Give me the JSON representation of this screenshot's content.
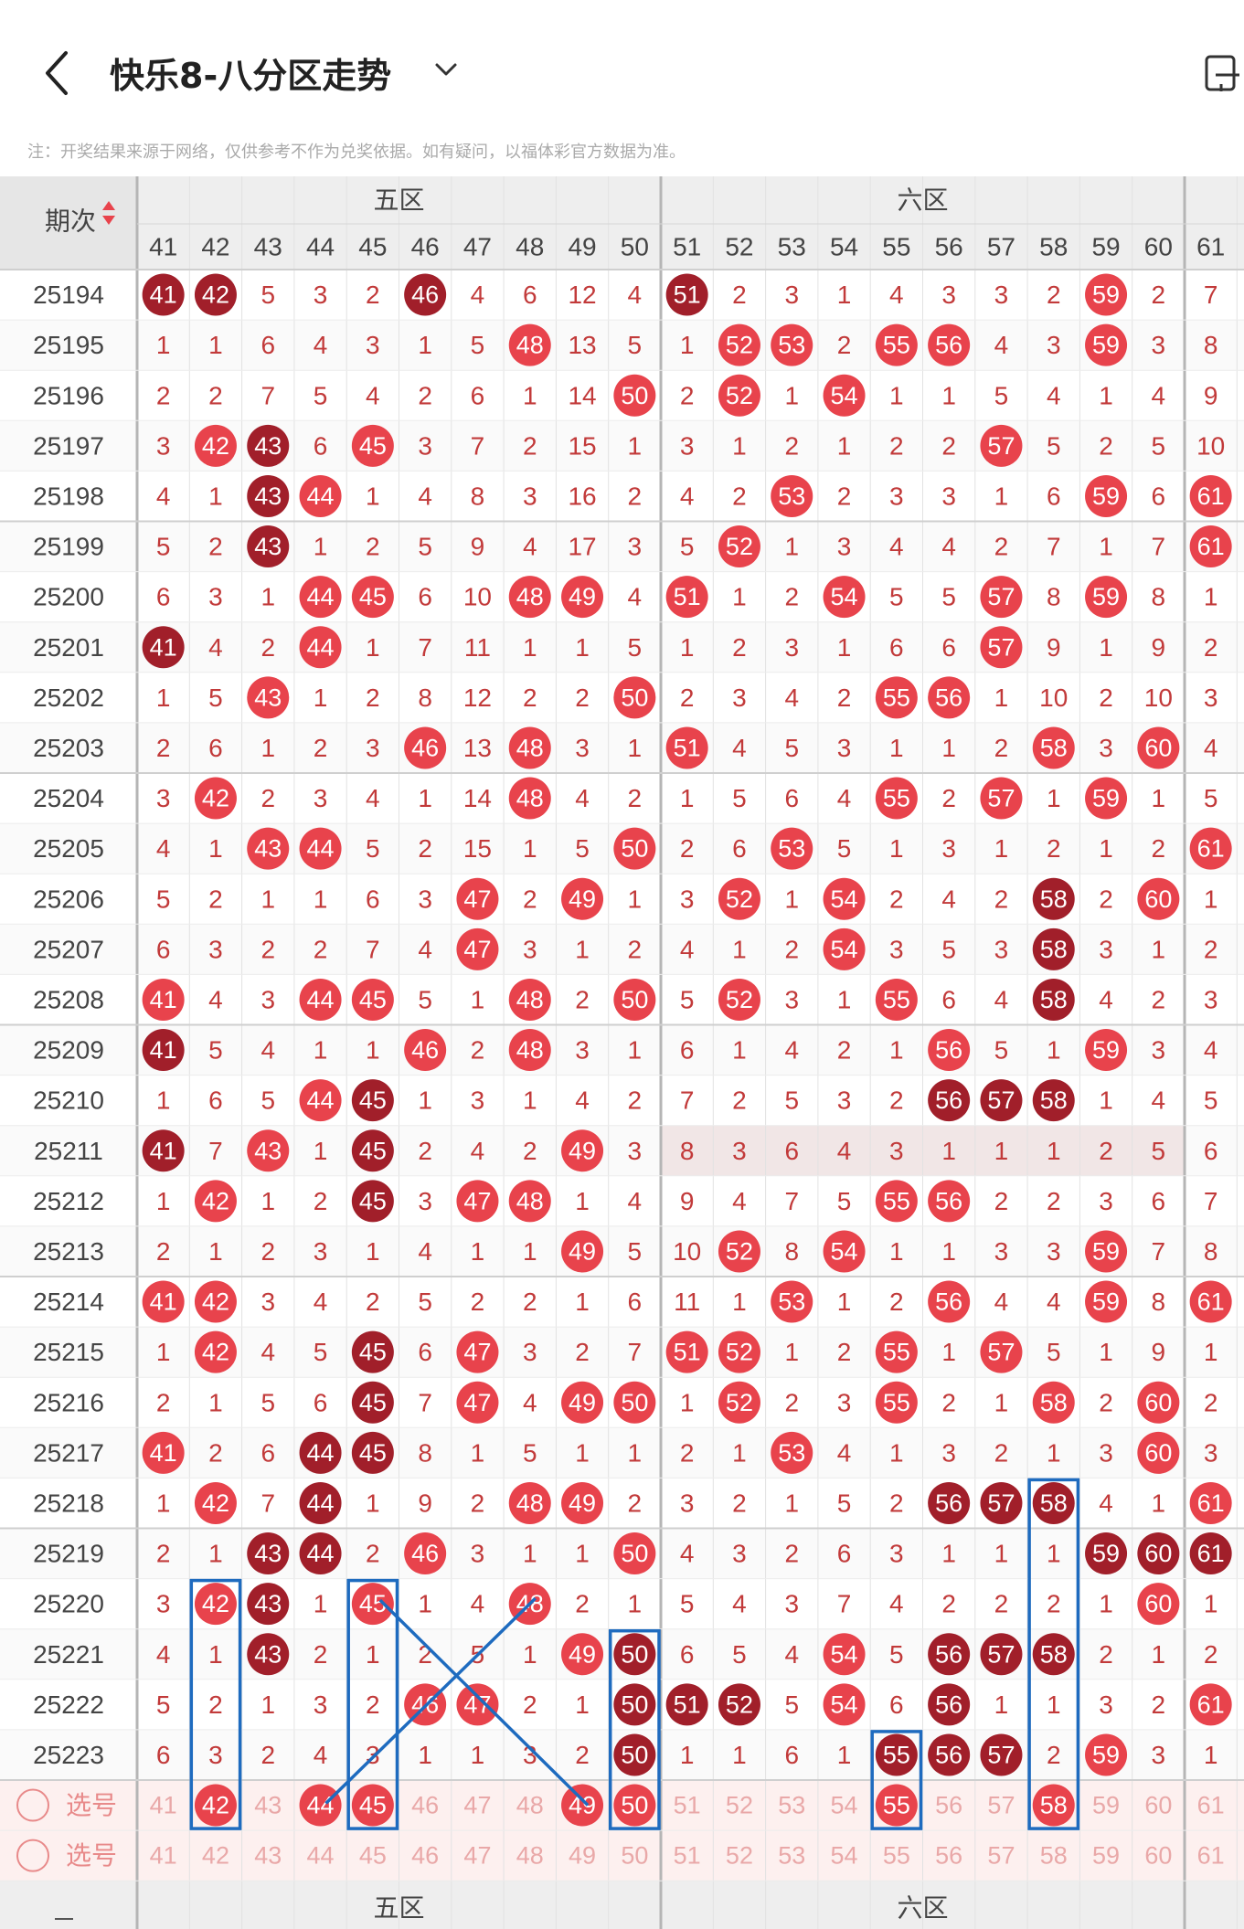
{
  "header": {
    "title": "快乐8-八分区走势",
    "notice": "注：开奖结果来源于网络，仅供参考不作为兑奖依据。如有疑问，以福体彩官方数据为准。",
    "back_icon": "chevron-left-icon",
    "dropdown_icon": "chevron-down-icon",
    "device_icon": "device-switch-icon"
  },
  "table": {
    "period_header": "期次",
    "zones": [
      "五区",
      "六区"
    ],
    "columns": [
      "41",
      "42",
      "43",
      "44",
      "45",
      "46",
      "47",
      "48",
      "49",
      "50",
      "51",
      "52",
      "53",
      "54",
      "55",
      "56",
      "57",
      "58",
      "59",
      "60",
      "61"
    ],
    "rows": [
      {
        "period": "25194",
        "cells": [
          41,
          42,
          5,
          3,
          2,
          46,
          4,
          6,
          12,
          4,
          51,
          2,
          3,
          1,
          4,
          3,
          3,
          2,
          59,
          2,
          7
        ]
      },
      {
        "period": "25195",
        "cells": [
          1,
          1,
          6,
          4,
          3,
          1,
          5,
          48,
          13,
          5,
          1,
          52,
          53,
          2,
          55,
          56,
          4,
          3,
          59,
          3,
          8
        ]
      },
      {
        "period": "25196",
        "cells": [
          2,
          2,
          7,
          5,
          4,
          2,
          6,
          1,
          14,
          50,
          2,
          52,
          1,
          54,
          1,
          1,
          5,
          4,
          1,
          4,
          9
        ]
      },
      {
        "period": "25197",
        "cells": [
          3,
          42,
          43,
          6,
          45,
          3,
          7,
          2,
          15,
          1,
          3,
          1,
          2,
          1,
          2,
          2,
          57,
          5,
          2,
          5,
          10
        ]
      },
      {
        "period": "25198",
        "cells": [
          4,
          1,
          43,
          44,
          1,
          4,
          8,
          3,
          16,
          2,
          4,
          2,
          53,
          2,
          3,
          3,
          1,
          6,
          59,
          6,
          61
        ]
      },
      {
        "period": "25199",
        "cells": [
          5,
          2,
          43,
          1,
          2,
          5,
          9,
          4,
          17,
          3,
          5,
          52,
          1,
          3,
          4,
          4,
          2,
          7,
          1,
          7,
          61
        ]
      },
      {
        "period": "25200",
        "cells": [
          6,
          3,
          1,
          44,
          45,
          6,
          10,
          48,
          49,
          4,
          51,
          1,
          2,
          54,
          5,
          5,
          57,
          8,
          59,
          8,
          1
        ]
      },
      {
        "period": "25201",
        "cells": [
          41,
          4,
          2,
          44,
          1,
          7,
          11,
          1,
          1,
          5,
          1,
          2,
          3,
          1,
          6,
          6,
          57,
          9,
          1,
          9,
          2
        ]
      },
      {
        "period": "25202",
        "cells": [
          1,
          5,
          43,
          1,
          2,
          8,
          12,
          2,
          2,
          50,
          2,
          3,
          4,
          2,
          55,
          56,
          1,
          10,
          2,
          10,
          3
        ]
      },
      {
        "period": "25203",
        "cells": [
          2,
          6,
          1,
          2,
          3,
          46,
          13,
          48,
          3,
          1,
          51,
          4,
          5,
          3,
          1,
          1,
          2,
          58,
          3,
          60,
          4
        ]
      },
      {
        "period": "25204",
        "cells": [
          3,
          42,
          2,
          3,
          4,
          1,
          14,
          48,
          4,
          2,
          1,
          5,
          6,
          4,
          55,
          2,
          57,
          1,
          59,
          1,
          5
        ]
      },
      {
        "period": "25205",
        "cells": [
          4,
          1,
          43,
          44,
          5,
          2,
          15,
          1,
          5,
          50,
          2,
          6,
          53,
          5,
          1,
          3,
          1,
          2,
          1,
          2,
          61
        ]
      },
      {
        "period": "25206",
        "cells": [
          5,
          2,
          1,
          1,
          6,
          3,
          47,
          2,
          49,
          1,
          3,
          52,
          1,
          54,
          2,
          4,
          2,
          58,
          2,
          60,
          1
        ]
      },
      {
        "period": "25207",
        "cells": [
          6,
          3,
          2,
          2,
          7,
          4,
          47,
          3,
          1,
          2,
          4,
          1,
          2,
          54,
          3,
          5,
          3,
          58,
          3,
          1,
          2
        ]
      },
      {
        "period": "25208",
        "cells": [
          41,
          4,
          3,
          44,
          45,
          5,
          1,
          48,
          2,
          50,
          5,
          52,
          3,
          1,
          55,
          6,
          4,
          58,
          4,
          2,
          3
        ]
      },
      {
        "period": "25209",
        "cells": [
          41,
          5,
          4,
          1,
          1,
          46,
          2,
          48,
          3,
          1,
          6,
          1,
          4,
          2,
          1,
          56,
          5,
          1,
          59,
          3,
          4
        ]
      },
      {
        "period": "25210",
        "cells": [
          1,
          6,
          5,
          44,
          45,
          1,
          3,
          1,
          4,
          2,
          7,
          2,
          5,
          3,
          2,
          56,
          57,
          58,
          1,
          4,
          5
        ]
      },
      {
        "period": "25211",
        "cells": [
          41,
          7,
          43,
          1,
          45,
          2,
          4,
          2,
          49,
          3,
          8,
          3,
          6,
          4,
          3,
          1,
          1,
          1,
          2,
          5,
          6
        ]
      },
      {
        "period": "25212",
        "cells": [
          1,
          42,
          1,
          2,
          45,
          3,
          47,
          48,
          1,
          4,
          9,
          4,
          7,
          5,
          55,
          56,
          2,
          2,
          3,
          6,
          7
        ]
      },
      {
        "period": "25213",
        "cells": [
          2,
          1,
          2,
          3,
          1,
          4,
          1,
          1,
          49,
          5,
          10,
          52,
          8,
          54,
          1,
          1,
          3,
          3,
          59,
          7,
          8
        ]
      },
      {
        "period": "25214",
        "cells": [
          41,
          42,
          3,
          4,
          2,
          5,
          2,
          2,
          1,
          6,
          11,
          1,
          53,
          1,
          2,
          56,
          4,
          4,
          59,
          8,
          61
        ]
      },
      {
        "period": "25215",
        "cells": [
          1,
          42,
          4,
          5,
          45,
          6,
          47,
          3,
          2,
          7,
          51,
          52,
          1,
          2,
          55,
          1,
          57,
          5,
          1,
          9,
          1
        ]
      },
      {
        "period": "25216",
        "cells": [
          2,
          1,
          5,
          6,
          45,
          7,
          47,
          4,
          49,
          50,
          1,
          52,
          2,
          3,
          55,
          2,
          1,
          58,
          2,
          60,
          2
        ]
      },
      {
        "period": "25217",
        "cells": [
          41,
          2,
          6,
          44,
          45,
          8,
          1,
          5,
          1,
          1,
          2,
          1,
          53,
          4,
          1,
          3,
          2,
          1,
          3,
          60,
          3
        ]
      },
      {
        "period": "25218",
        "cells": [
          1,
          42,
          7,
          44,
          1,
          9,
          2,
          48,
          49,
          2,
          3,
          2,
          1,
          5,
          2,
          56,
          57,
          58,
          4,
          1,
          61
        ]
      },
      {
        "period": "25219",
        "cells": [
          2,
          1,
          43,
          44,
          2,
          46,
          3,
          1,
          1,
          50,
          4,
          3,
          2,
          6,
          3,
          1,
          1,
          1,
          59,
          60,
          61
        ]
      },
      {
        "period": "25220",
        "cells": [
          3,
          42,
          43,
          1,
          45,
          1,
          4,
          48,
          2,
          1,
          5,
          4,
          3,
          7,
          4,
          2,
          2,
          2,
          1,
          60,
          1
        ]
      },
      {
        "period": "25221",
        "cells": [
          4,
          1,
          43,
          2,
          1,
          2,
          5,
          1,
          49,
          50,
          6,
          5,
          4,
          54,
          5,
          56,
          57,
          58,
          2,
          1,
          2
        ]
      },
      {
        "period": "25222",
        "cells": [
          5,
          2,
          1,
          3,
          2,
          46,
          47,
          2,
          1,
          50,
          51,
          52,
          5,
          54,
          6,
          56,
          1,
          1,
          3,
          2,
          61
        ]
      },
      {
        "period": "25223",
        "cells": [
          6,
          3,
          2,
          4,
          3,
          1,
          1,
          3,
          2,
          50,
          1,
          1,
          6,
          1,
          55,
          56,
          57,
          2,
          59,
          3,
          1
        ]
      }
    ],
    "dark_balls": [
      [
        0,
        0
      ],
      [
        0,
        1
      ],
      [
        0,
        5
      ],
      [
        0,
        10
      ],
      [
        3,
        2
      ],
      [
        4,
        2
      ],
      [
        5,
        2
      ],
      [
        7,
        0
      ],
      [
        12,
        17
      ],
      [
        13,
        17
      ],
      [
        14,
        17
      ],
      [
        15,
        0
      ],
      [
        16,
        4
      ],
      [
        16,
        15
      ],
      [
        16,
        16
      ],
      [
        16,
        17
      ],
      [
        17,
        0
      ],
      [
        17,
        4
      ],
      [
        18,
        4
      ],
      [
        21,
        4
      ],
      [
        22,
        4
      ],
      [
        23,
        3
      ],
      [
        23,
        4
      ],
      [
        24,
        3
      ],
      [
        24,
        15
      ],
      [
        24,
        16
      ],
      [
        24,
        17
      ],
      [
        25,
        2
      ],
      [
        25,
        3
      ],
      [
        25,
        18
      ],
      [
        25,
        19
      ],
      [
        25,
        20
      ],
      [
        26,
        2
      ],
      [
        27,
        2
      ],
      [
        27,
        9
      ],
      [
        27,
        15
      ],
      [
        27,
        16
      ],
      [
        27,
        17
      ],
      [
        28,
        9
      ],
      [
        28,
        10
      ],
      [
        28,
        11
      ],
      [
        28,
        15
      ],
      [
        29,
        9
      ],
      [
        29,
        14
      ],
      [
        29,
        15
      ],
      [
        29,
        16
      ]
    ],
    "select_rows": [
      {
        "label": "选号",
        "picked": [
          "42",
          "44",
          "45",
          "49",
          "50",
          "55",
          "58"
        ]
      },
      {
        "label": "选号",
        "picked": []
      }
    ],
    "colors": {
      "ball_red": "#e8434c",
      "ball_dark": "#a11f2a",
      "number_text": "#c23a3a",
      "pick_box": "#1e6bbf",
      "header_bg": "#eeeeee"
    }
  }
}
